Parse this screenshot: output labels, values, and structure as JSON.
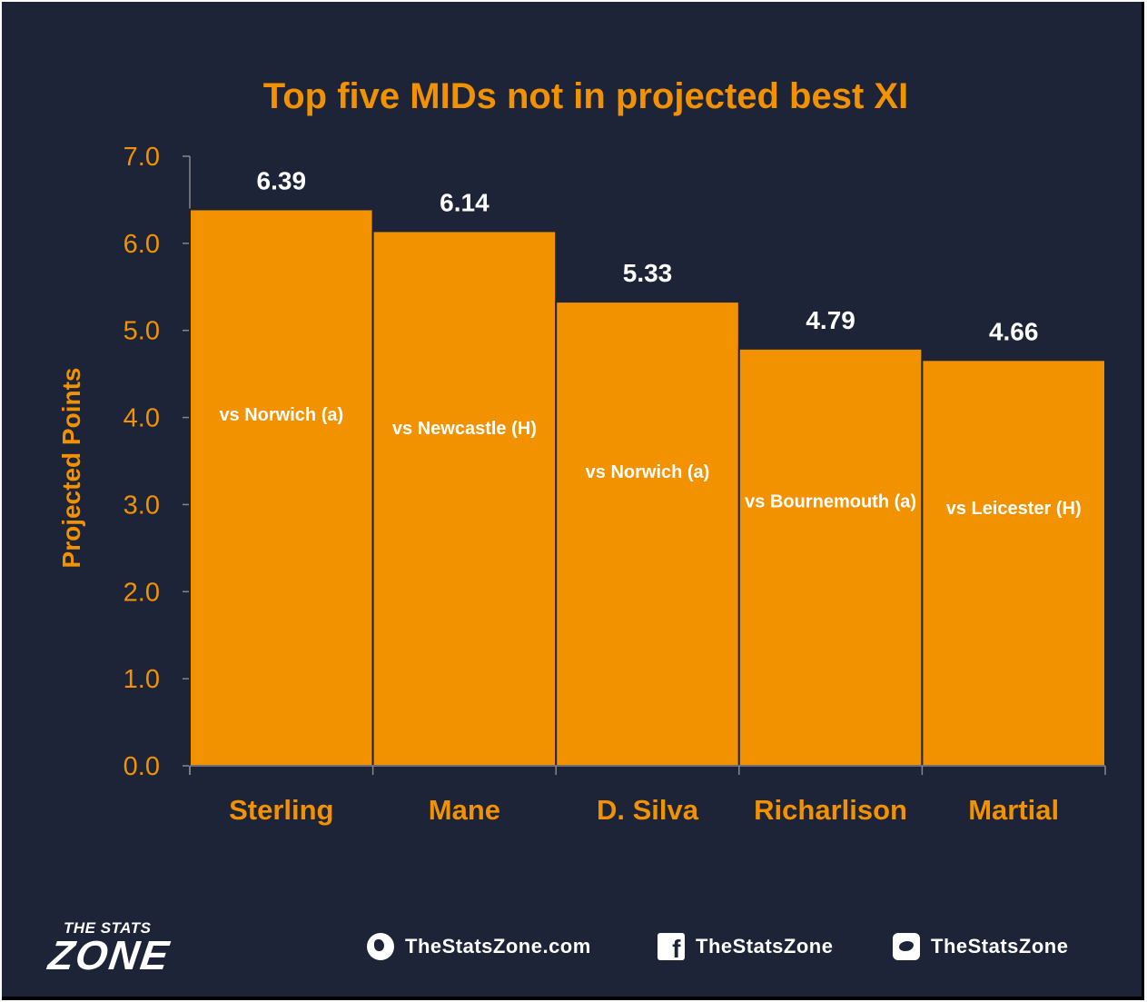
{
  "chart_data": {
    "type": "bar",
    "title": "Top five MIDs not in projected best XI",
    "ylabel": "Projected Points",
    "xlabel": "",
    "ylim": [
      0,
      7
    ],
    "yticks": [
      "0.0",
      "1.0",
      "2.0",
      "3.0",
      "4.0",
      "5.0",
      "6.0",
      "7.0"
    ],
    "categories": [
      "Sterling",
      "Mane",
      "D. Silva",
      "Richarlison",
      "Martial"
    ],
    "values": [
      6.39,
      6.14,
      5.33,
      4.79,
      4.66
    ],
    "value_labels": [
      "6.39",
      "6.14",
      "5.33",
      "4.79",
      "4.66"
    ],
    "bar_annotations": [
      "vs Norwich (a)",
      "vs Newcastle (H)",
      "vs Norwich (a)",
      "vs Bournemouth (a)",
      "vs Leicester (H)"
    ],
    "grid": false,
    "legend": "none",
    "colors": {
      "bar": "#f39200",
      "bar_edge": "#1d2437",
      "background": "#1d2437",
      "axis": "#888888",
      "text": "#f39200"
    }
  },
  "footer": {
    "logo_top": "THE STATS",
    "logo_main": "ZONE",
    "website": "TheStatsZone.com",
    "facebook": "TheStatsZone",
    "twitter": "TheStatsZone",
    "icons": [
      "globe-icon",
      "facebook-icon",
      "twitter-icon"
    ]
  }
}
